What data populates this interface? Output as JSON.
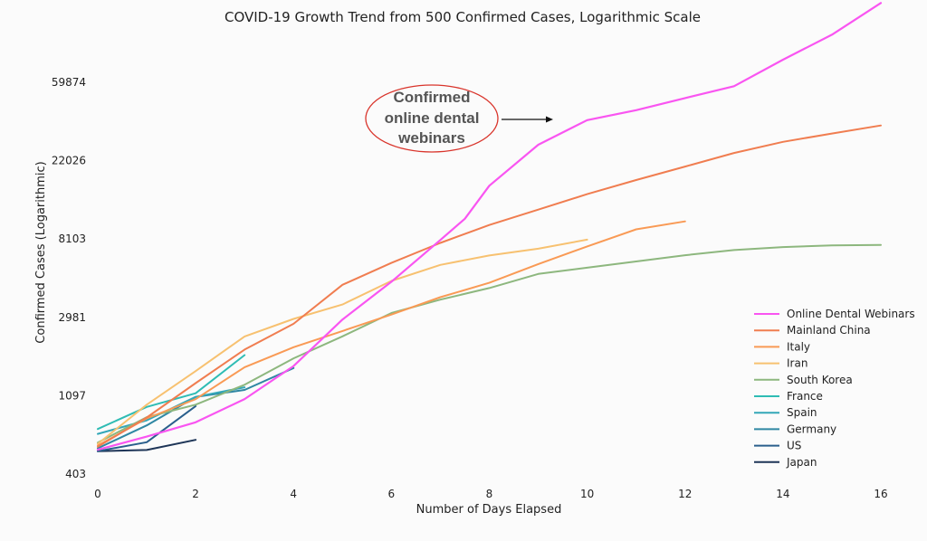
{
  "chart_data": {
    "type": "line",
    "title": "COVID-19 Growth Trend from 500 Confirmed Cases, Logarithmic Scale",
    "xlabel": "Number of Days Elapsed",
    "ylabel": "Confirmed Cases (Logarithmic)",
    "xlim": [
      0,
      16
    ],
    "ylim": [
      403,
      160000
    ],
    "yscale": "log",
    "xticks": [
      "0",
      "2",
      "4",
      "6",
      "8",
      "10",
      "12",
      "14",
      "16"
    ],
    "yticks": [
      {
        "value": 403,
        "label": "403"
      },
      {
        "value": 1097,
        "label": "1097"
      },
      {
        "value": 2981,
        "label": "2981"
      },
      {
        "value": 8103,
        "label": "8103"
      },
      {
        "value": 22026,
        "label": "22026"
      },
      {
        "value": 59874,
        "label": "59874"
      }
    ],
    "legend_position": "bottom-right",
    "annotation": {
      "lines": [
        "Confirmed",
        "online dental",
        "webinars"
      ],
      "x": 7.5,
      "y": 29000,
      "arrow_to": {
        "x": 9.3,
        "y": 33000
      }
    },
    "series": [
      {
        "name": "Online Dental Webinars",
        "color": "#f955f1",
        "x": [
          0,
          1,
          2,
          3,
          4,
          5,
          6,
          7,
          7.5,
          8,
          9,
          10,
          11,
          12,
          13,
          14,
          15,
          16
        ],
        "y": [
          550,
          650,
          780,
          1050,
          1600,
          2900,
          4700,
          8000,
          10500,
          16000,
          27000,
          37000,
          42000,
          49000,
          57000,
          80000,
          110000,
          165000
        ]
      },
      {
        "name": "Mainland China",
        "color": "#f07d50",
        "x": [
          0,
          1,
          2,
          3,
          4,
          5,
          6,
          7,
          8,
          9,
          10,
          11,
          12,
          13,
          14,
          15,
          16
        ],
        "y": [
          571,
          830,
          1287,
          1975,
          2744,
          4515,
          5974,
          7711,
          9692,
          11791,
          14380,
          17205,
          20438,
          24324,
          28018,
          31161,
          34546
        ]
      },
      {
        "name": "Italy",
        "color": "#f99a55",
        "x": [
          0,
          1,
          2,
          3,
          4,
          5,
          6,
          7,
          8,
          9,
          10,
          11,
          12
        ],
        "y": [
          580,
          820,
          1049,
          1577,
          2036,
          2502,
          3089,
          3858,
          4636,
          5883,
          7375,
          9172,
          10149
        ]
      },
      {
        "name": "Iran",
        "color": "#f7c170",
        "x": [
          0,
          1,
          2,
          3,
          4,
          5,
          6,
          7,
          8,
          9,
          10
        ],
        "y": [
          593,
          978,
          1501,
          2336,
          2922,
          3513,
          4747,
          5823,
          6566,
          7161,
          8042
        ]
      },
      {
        "name": "South Korea",
        "color": "#8db77e",
        "x": [
          0,
          1,
          2,
          3,
          4,
          5,
          6,
          7,
          8,
          9,
          10,
          11,
          12,
          13,
          14,
          15,
          16
        ],
        "y": [
          602,
          833,
          977,
          1261,
          1766,
          2337,
          3150,
          3736,
          4335,
          5186,
          5621,
          6088,
          6593,
          7041,
          7314,
          7478,
          7513
        ]
      },
      {
        "name": "France",
        "color": "#2fbcb4",
        "x": [
          0,
          1,
          2,
          3
        ],
        "y": [
          716,
          950,
          1130,
          1840
        ]
      },
      {
        "name": "Spain",
        "color": "#33a7b8",
        "x": [
          0,
          1,
          2,
          3
        ],
        "y": [
          673,
          800,
          1080,
          1220
        ]
      },
      {
        "name": "Germany",
        "color": "#2f87a3",
        "x": [
          0,
          1,
          2,
          3,
          4
        ],
        "y": [
          560,
          750,
          1080,
          1180,
          1560
        ]
      },
      {
        "name": "US",
        "color": "#2a5f8c",
        "x": [
          0,
          1,
          2
        ],
        "y": [
          540,
          605,
          960
        ]
      },
      {
        "name": "Japan",
        "color": "#1e3557",
        "x": [
          0,
          1,
          2
        ],
        "y": [
          539,
          548,
          624
        ]
      }
    ]
  }
}
